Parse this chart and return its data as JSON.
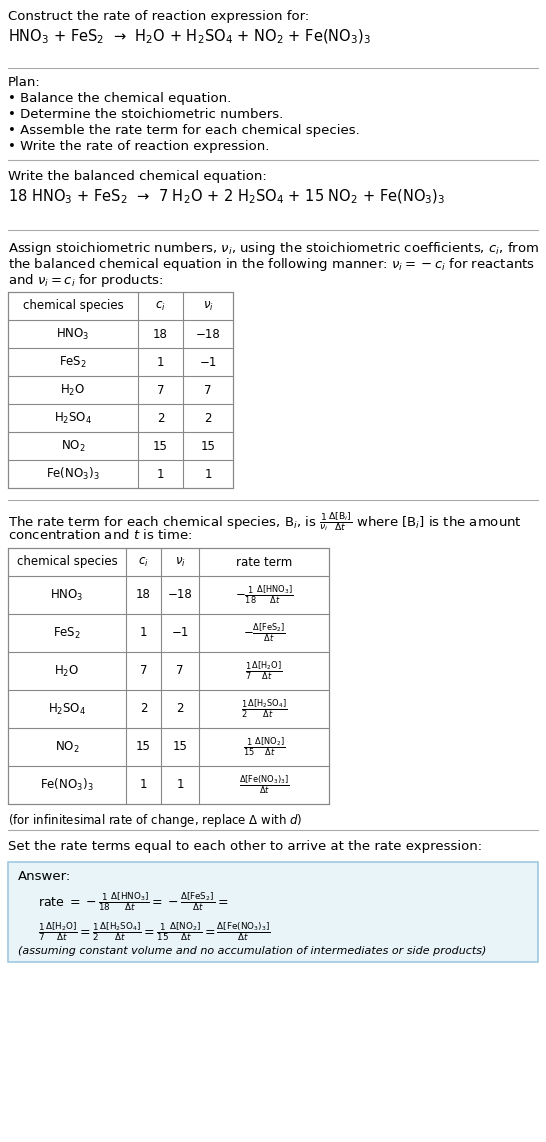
{
  "title_text": "Construct the rate of reaction expression for:",
  "reaction_unbalanced": "HNO$_3$ + FeS$_2$  →  H$_2$O + H$_2$SO$_4$ + NO$_2$ + Fe(NO$_3$)$_3$",
  "plan_title": "Plan:",
  "plan_items": [
    "• Balance the chemical equation.",
    "• Determine the stoichiometric numbers.",
    "• Assemble the rate term for each chemical species.",
    "• Write the rate of reaction expression."
  ],
  "balanced_label": "Write the balanced chemical equation:",
  "reaction_balanced": "18 HNO$_3$ + FeS$_2$  →  7 H$_2$O + 2 H$_2$SO$_4$ + 15 NO$_2$ + Fe(NO$_3$)$_3$",
  "stoich_label": "Assign stoichiometric numbers, $\\nu_i$, using the stoichiometric coefficients, $c_i$, from\nthe balanced chemical equation in the following manner: $\\nu_i = -c_i$ for reactants\nand $\\nu_i = c_i$ for products:",
  "table1_headers": [
    "chemical species",
    "$c_i$",
    "$\\nu_i$"
  ],
  "table1_rows": [
    [
      "HNO$_3$",
      "18",
      "−18"
    ],
    [
      "FeS$_2$",
      "1",
      "−1"
    ],
    [
      "H$_2$O",
      "7",
      "7"
    ],
    [
      "H$_2$SO$_4$",
      "2",
      "2"
    ],
    [
      "NO$_2$",
      "15",
      "15"
    ],
    [
      "Fe(NO$_3$)$_3$",
      "1",
      "1"
    ]
  ],
  "rate_term_label": "The rate term for each chemical species, B$_i$, is $\\frac{1}{\\nu_i}\\frac{\\Delta[\\mathrm{B}_i]}{\\Delta t}$ where [B$_i$] is the amount\nconcentration and $t$ is time:",
  "table2_headers": [
    "chemical species",
    "$c_i$",
    "$\\nu_i$",
    "rate term"
  ],
  "table2_rows": [
    [
      "HNO$_3$",
      "18",
      "−18",
      "$-\\frac{1}{18}\\frac{\\Delta[\\mathrm{HNO_3}]}{\\Delta t}$"
    ],
    [
      "FeS$_2$",
      "1",
      "−1",
      "$-\\frac{\\Delta[\\mathrm{FeS_2}]}{\\Delta t}$"
    ],
    [
      "H$_2$O",
      "7",
      "7",
      "$\\frac{1}{7}\\frac{\\Delta[\\mathrm{H_2O}]}{\\Delta t}$"
    ],
    [
      "H$_2$SO$_4$",
      "2",
      "2",
      "$\\frac{1}{2}\\frac{\\Delta[\\mathrm{H_2SO_4}]}{\\Delta t}$"
    ],
    [
      "NO$_2$",
      "15",
      "15",
      "$\\frac{1}{15}\\frac{\\Delta[\\mathrm{NO_2}]}{\\Delta t}$"
    ],
    [
      "Fe(NO$_3$)$_3$",
      "1",
      "1",
      "$\\frac{\\Delta[\\mathrm{Fe(NO_3)_3}]}{\\Delta t}$"
    ]
  ],
  "infinitesimal_note": "(for infinitesimal rate of change, replace Δ with $d$)",
  "set_rate_label": "Set the rate terms equal to each other to arrive at the rate expression:",
  "answer_box_color": "#e8f4f8",
  "answer_box_border": "#a0c8e0",
  "answer_label": "Answer:",
  "rate_expression_line1": "rate $= -\\frac{1}{18}\\frac{\\Delta[\\mathrm{HNO_3}]}{\\Delta t} = -\\frac{\\Delta[\\mathrm{FeS_2}]}{\\Delta t} =$",
  "rate_expression_line2": "$\\frac{1}{7}\\frac{\\Delta[\\mathrm{H_2O}]}{\\Delta t} = \\frac{1}{2}\\frac{\\Delta[\\mathrm{H_2SO_4}]}{\\Delta t} = \\frac{1}{15}\\frac{\\Delta[\\mathrm{NO_2}]}{\\Delta t} = \\frac{\\Delta[\\mathrm{Fe(NO_3)_3}]}{\\Delta t}$",
  "assumption_note": "(assuming constant volume and no accumulation of intermediates or side products)",
  "bg_color": "#ffffff",
  "text_color": "#000000",
  "table_border_color": "#888888",
  "font_size": 9.5,
  "small_font_size": 8.5
}
